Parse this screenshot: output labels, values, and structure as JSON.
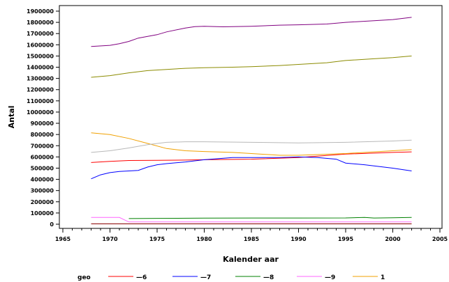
{
  "chart_data": {
    "type": "line",
    "title": "",
    "xlabel": "Kalender aar",
    "ylabel": "Antal",
    "xlim": [
      1965,
      2005
    ],
    "ylim": [
      0,
      1900000
    ],
    "x_ticks": [
      "1965",
      "1970",
      "1975",
      "1980",
      "1985",
      "1990",
      "1995",
      "2000",
      "2005"
    ],
    "y_ticks": [
      "0",
      "100000",
      "200000",
      "300000",
      "400000",
      "500000",
      "600000",
      "700000",
      "800000",
      "900000",
      "1000000",
      "1100000",
      "1200000",
      "1300000",
      "1400000",
      "1500000",
      "1600000",
      "1700000",
      "1800000",
      "1900000"
    ],
    "legend": {
      "title": "geo",
      "placement": "bottom"
    },
    "series": [
      {
        "label": "—6",
        "color": "#ff0000",
        "x": [
          1968,
          1970,
          1972,
          1975,
          1978,
          1980,
          1985,
          1990,
          1995,
          2000,
          2002
        ],
        "y": [
          550000,
          560000,
          568000,
          570000,
          572000,
          575000,
          580000,
          595000,
          625000,
          640000,
          645000
        ]
      },
      {
        "label": "—7",
        "color": "#0000ff",
        "x": [
          1968,
          1969,
          1970,
          1971,
          1972,
          1973,
          1974,
          1975,
          1976,
          1978,
          1980,
          1983,
          1985,
          1988,
          1990,
          1992,
          1994,
          1995,
          1997,
          2000,
          2002
        ],
        "y": [
          405000,
          440000,
          460000,
          470000,
          475000,
          480000,
          510000,
          530000,
          540000,
          555000,
          575000,
          595000,
          595000,
          595000,
          600000,
          595000,
          580000,
          545000,
          530000,
          500000,
          475000
        ]
      },
      {
        "label": "—8",
        "color": "#008000",
        "x": [
          1972,
          1975,
          1980,
          1985,
          1990,
          1995,
          1997,
          1998,
          2000,
          2002
        ],
        "y": [
          50000,
          52000,
          54000,
          55000,
          55000,
          56000,
          60000,
          55000,
          58000,
          60000
        ]
      },
      {
        "label": "—9",
        "color": "#ff66ff",
        "x": [
          1968,
          1970,
          1971,
          1972,
          1975,
          1980,
          1985,
          1990,
          1995,
          2000,
          2002
        ],
        "y": [
          60000,
          60000,
          60000,
          20000,
          20000,
          20000,
          20000,
          20000,
          20000,
          20000,
          20000
        ]
      },
      {
        "label": "1",
        "color": "#f0a000",
        "x": [
          1968,
          1970,
          1972,
          1974,
          1976,
          1978,
          1980,
          1983,
          1985,
          1988,
          1990,
          1995,
          2000,
          2002
        ],
        "y": [
          815000,
          800000,
          765000,
          720000,
          675000,
          655000,
          648000,
          640000,
          630000,
          615000,
          615000,
          630000,
          655000,
          665000
        ]
      },
      {
        "label": "",
        "color": "#b8b8b8",
        "x": [
          1968,
          1970,
          1972,
          1974,
          1976,
          1978,
          1980,
          1985,
          1990,
          1995,
          2000,
          2002
        ],
        "y": [
          640000,
          655000,
          680000,
          710000,
          730000,
          735000,
          735000,
          730000,
          725000,
          730000,
          742000,
          750000
        ]
      },
      {
        "label": "",
        "color": "#8b0000",
        "x": [
          1968,
          1970,
          1975,
          1980,
          1985,
          1990,
          1995,
          2000,
          2002
        ],
        "y": [
          3000,
          3000,
          3000,
          3000,
          3000,
          3000,
          3000,
          3000,
          3000
        ]
      },
      {
        "label": "",
        "color": "#8b8b00",
        "x": [
          1968,
          1970,
          1972,
          1974,
          1976,
          1978,
          1980,
          1983,
          1985,
          1988,
          1990,
          1993,
          1995,
          1998,
          2000,
          2002
        ],
        "y": [
          1310000,
          1325000,
          1350000,
          1370000,
          1380000,
          1390000,
          1395000,
          1400000,
          1405000,
          1415000,
          1425000,
          1440000,
          1460000,
          1475000,
          1485000,
          1500000
        ]
      },
      {
        "label": "",
        "color": "#800080",
        "x": [
          1968,
          1970,
          1971,
          1972,
          1973,
          1975,
          1976,
          1978,
          1979,
          1980,
          1982,
          1985,
          1988,
          1990,
          1993,
          1995,
          1998,
          2000,
          2002
        ],
        "y": [
          1585000,
          1595000,
          1610000,
          1630000,
          1660000,
          1690000,
          1715000,
          1750000,
          1762000,
          1765000,
          1760000,
          1765000,
          1775000,
          1778000,
          1785000,
          1800000,
          1815000,
          1825000,
          1845000
        ]
      }
    ]
  }
}
